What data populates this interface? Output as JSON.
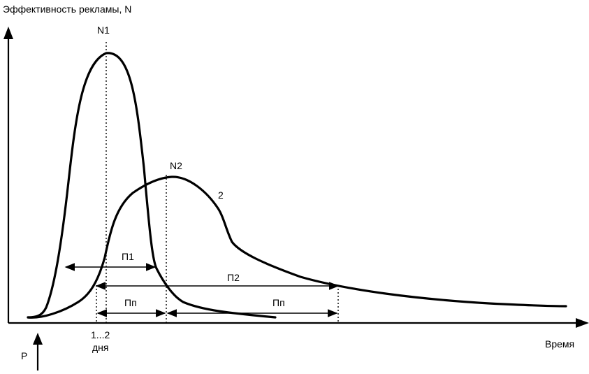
{
  "axes": {
    "y_label": "Эффективность рекламы, N",
    "x_label": "Время"
  },
  "markers": {
    "peak1": "N1",
    "peak2": "N2",
    "curve2": "2",
    "p1": "П1",
    "p2": "П2",
    "pn_left": "Пп",
    "pn_right": "Пп",
    "start_line1": "1...2",
    "start_line2": "дня",
    "impulse": "Р"
  }
}
